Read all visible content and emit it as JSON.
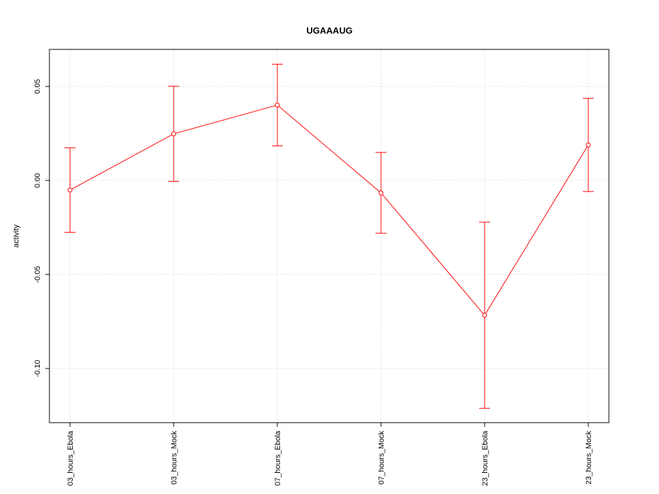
{
  "chart_data": {
    "type": "line",
    "title": "UGAAAUG",
    "y_label": "activity",
    "categories": [
      "03_hours_Ebola",
      "03_hours_Mock",
      "07_hours_Ebola",
      "07_hours_Mock",
      "23_hours_Ebola",
      "23_hours_Mock"
    ],
    "series": [
      {
        "name": "activity",
        "color": "#ff0000",
        "values": [
          -0.0051,
          0.0248,
          0.0401,
          -0.0066,
          -0.0717,
          0.0189
        ],
        "errors": [
          0.0225,
          0.0253,
          0.0217,
          0.0215,
          0.0495,
          0.0248
        ]
      }
    ],
    "ylim": [
      -0.1288,
      0.0697
    ],
    "yticks": [
      0.05,
      {
        "value": 0,
        "label": "0.00"
      },
      -0.05,
      {
        "value": -0.1,
        "label": "-0.10"
      }
    ],
    "grid": true
  }
}
